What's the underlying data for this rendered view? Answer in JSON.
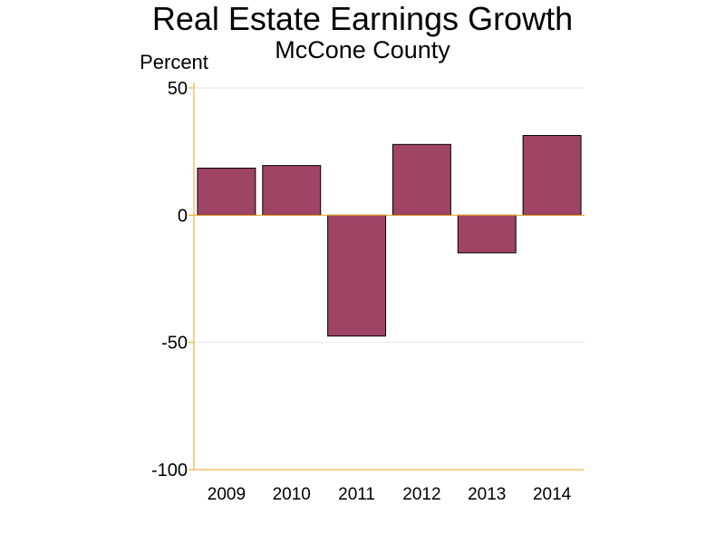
{
  "chart_data": {
    "type": "bar",
    "title": "Real Estate Earnings Growth",
    "subtitle": "McCone County",
    "ylabel": "Percent",
    "xlabel": "",
    "categories": [
      "2009",
      "2010",
      "2011",
      "2012",
      "2013",
      "2014"
    ],
    "values": [
      18.5,
      19.5,
      -47.5,
      27.8,
      -14.8,
      31.3
    ],
    "ylim": [
      -100,
      50
    ],
    "yticks": [
      "50",
      "0",
      "-50",
      "-100"
    ],
    "grid": true,
    "colors": {
      "bar": "#a04466",
      "axis": "#f0a020",
      "grid": "#e6e6e6",
      "bar_stroke": "#000000"
    }
  }
}
